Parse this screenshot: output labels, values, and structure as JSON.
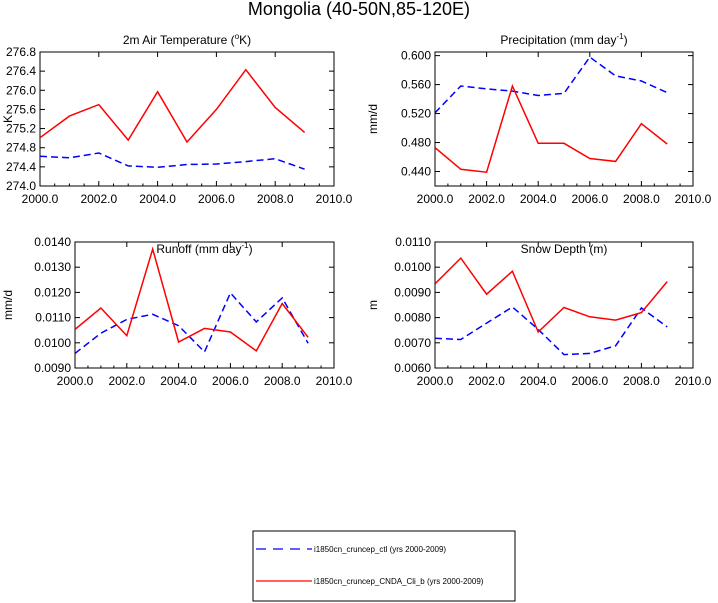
{
  "figure": {
    "title": "Mongolia (40-50N,85-120E)"
  },
  "legend": {
    "entries": [
      {
        "label": "i1850cn_cruncep_ctl (yrs 2000-2009)",
        "color": "#0000ff",
        "style": "dashed"
      },
      {
        "label": "i1850cn_cruncep_CNDA_Cli_b (yrs 2000-2009)",
        "color": "#ff0000",
        "style": "solid"
      }
    ]
  },
  "chart_data": [
    {
      "type": "line",
      "id": "temp",
      "title_main": "2m Air Temperature (",
      "title_sup": "o",
      "title_tail": "K)",
      "ylabel": "K",
      "xlim": [
        2000,
        2010
      ],
      "ylim": [
        274.0,
        276.8
      ],
      "xticks": [
        "2000.0",
        "2002.0",
        "2004.0",
        "2006.0",
        "2008.0",
        "2010.0"
      ],
      "yticks": [
        "274.0",
        "274.4",
        "274.8",
        "275.2",
        "275.6",
        "276.0",
        "276.4",
        "276.8"
      ],
      "x": [
        2000,
        2001,
        2002,
        2003,
        2004,
        2005,
        2006,
        2007,
        2008,
        2009
      ],
      "series": [
        {
          "color": "#0000ff",
          "style": "dashed",
          "values": [
            274.62,
            274.59,
            274.69,
            274.42,
            274.39,
            274.45,
            274.46,
            274.51,
            274.57,
            274.35
          ]
        },
        {
          "color": "#ff0000",
          "style": "solid",
          "values": [
            275.01,
            275.46,
            275.7,
            274.96,
            275.97,
            274.92,
            275.6,
            276.43,
            275.64,
            275.12
          ]
        }
      ]
    },
    {
      "type": "line",
      "id": "precip",
      "title_main": "Precipitation (mm day",
      "title_sup": "-1",
      "title_tail": ")",
      "ylabel": "mm/d",
      "xlim": [
        2000,
        2010
      ],
      "ylim": [
        0.42,
        0.605
      ],
      "xticks": [
        "2000.0",
        "2002.0",
        "2004.0",
        "2006.0",
        "2008.0",
        "2010.0"
      ],
      "yticks": [
        "0.440",
        "0.480",
        "0.520",
        "0.560",
        "0.600"
      ],
      "x": [
        2000,
        2001,
        2002,
        2003,
        2004,
        2005,
        2006,
        2007,
        2008,
        2009
      ],
      "series": [
        {
          "color": "#0000ff",
          "style": "dashed",
          "values": [
            0.521,
            0.558,
            0.554,
            0.551,
            0.545,
            0.548,
            0.598,
            0.572,
            0.565,
            0.549
          ]
        },
        {
          "color": "#ff0000",
          "style": "solid",
          "values": [
            0.473,
            0.443,
            0.439,
            0.558,
            0.479,
            0.479,
            0.458,
            0.454,
            0.506,
            0.478
          ]
        }
      ]
    },
    {
      "type": "line",
      "id": "runoff",
      "title_main": "Runoff (mm day",
      "title_sup": "-1",
      "title_tail": ")",
      "ylabel": "mm/d",
      "xlim": [
        2000,
        2010
      ],
      "ylim": [
        0.009,
        0.014
      ],
      "xticks": [
        "2000.0",
        "2002.0",
        "2004.0",
        "2006.0",
        "2008.0",
        "2010.0"
      ],
      "yticks": [
        "0.0090",
        "0.0100",
        "0.0110",
        "0.0120",
        "0.0130",
        "0.0140"
      ],
      "x": [
        2000,
        2001,
        2002,
        2003,
        2004,
        2005,
        2006,
        2007,
        2008,
        2009
      ],
      "series": [
        {
          "color": "#0000ff",
          "style": "dashed",
          "values": [
            0.00958,
            0.01038,
            0.01093,
            0.01113,
            0.01068,
            0.00964,
            0.01198,
            0.01083,
            0.01178,
            0.00998
          ]
        },
        {
          "color": "#ff0000",
          "style": "solid",
          "values": [
            0.01053,
            0.01138,
            0.01028,
            0.01372,
            0.01003,
            0.01057,
            0.01043,
            0.00968,
            0.01156,
            0.01022
          ]
        }
      ]
    },
    {
      "type": "line",
      "id": "snow",
      "title_main": "Snow Depth (m)",
      "title_sup": "",
      "title_tail": "",
      "ylabel": "m",
      "xlim": [
        2000,
        2010
      ],
      "ylim": [
        0.006,
        0.011
      ],
      "xticks": [
        "2000.0",
        "2002.0",
        "2004.0",
        "2006.0",
        "2008.0",
        "2010.0"
      ],
      "yticks": [
        "0.0060",
        "0.0070",
        "0.0080",
        "0.0090",
        "0.0100",
        "0.0110"
      ],
      "x": [
        2000,
        2001,
        2002,
        2003,
        2004,
        2005,
        2006,
        2007,
        2008,
        2009
      ],
      "series": [
        {
          "color": "#0000ff",
          "style": "dashed",
          "values": [
            0.00718,
            0.00713,
            0.00778,
            0.00842,
            0.00753,
            0.00653,
            0.00658,
            0.00688,
            0.00838,
            0.00763
          ]
        },
        {
          "color": "#ff0000",
          "style": "solid",
          "values": [
            0.00934,
            0.01036,
            0.00893,
            0.00984,
            0.00743,
            0.0084,
            0.00803,
            0.0079,
            0.0082,
            0.00943
          ]
        }
      ]
    }
  ]
}
